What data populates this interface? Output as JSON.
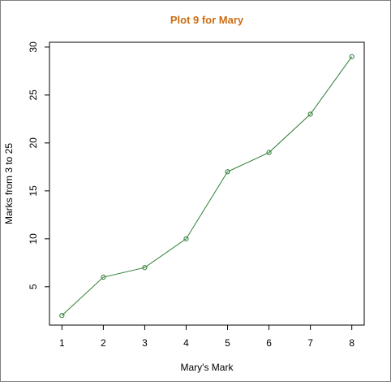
{
  "chart_data": {
    "type": "line",
    "title": "Plot 9 for Mary",
    "xlabel": "Mary's Mark",
    "ylabel": "Marks from 3 to 25",
    "x": [
      1,
      2,
      3,
      4,
      5,
      6,
      7,
      8
    ],
    "series": [
      {
        "values": [
          2,
          6,
          7,
          10,
          17,
          19,
          23,
          29
        ],
        "color": "#2e7d32"
      }
    ],
    "xlim": [
      0.7,
      8.3
    ],
    "ylim": [
      1,
      30.5
    ],
    "xticks": [
      1,
      2,
      3,
      4,
      5,
      6,
      7,
      8
    ],
    "yticks": [
      5,
      10,
      15,
      20,
      25,
      30
    ],
    "grid": false,
    "marker": "open-circle"
  }
}
